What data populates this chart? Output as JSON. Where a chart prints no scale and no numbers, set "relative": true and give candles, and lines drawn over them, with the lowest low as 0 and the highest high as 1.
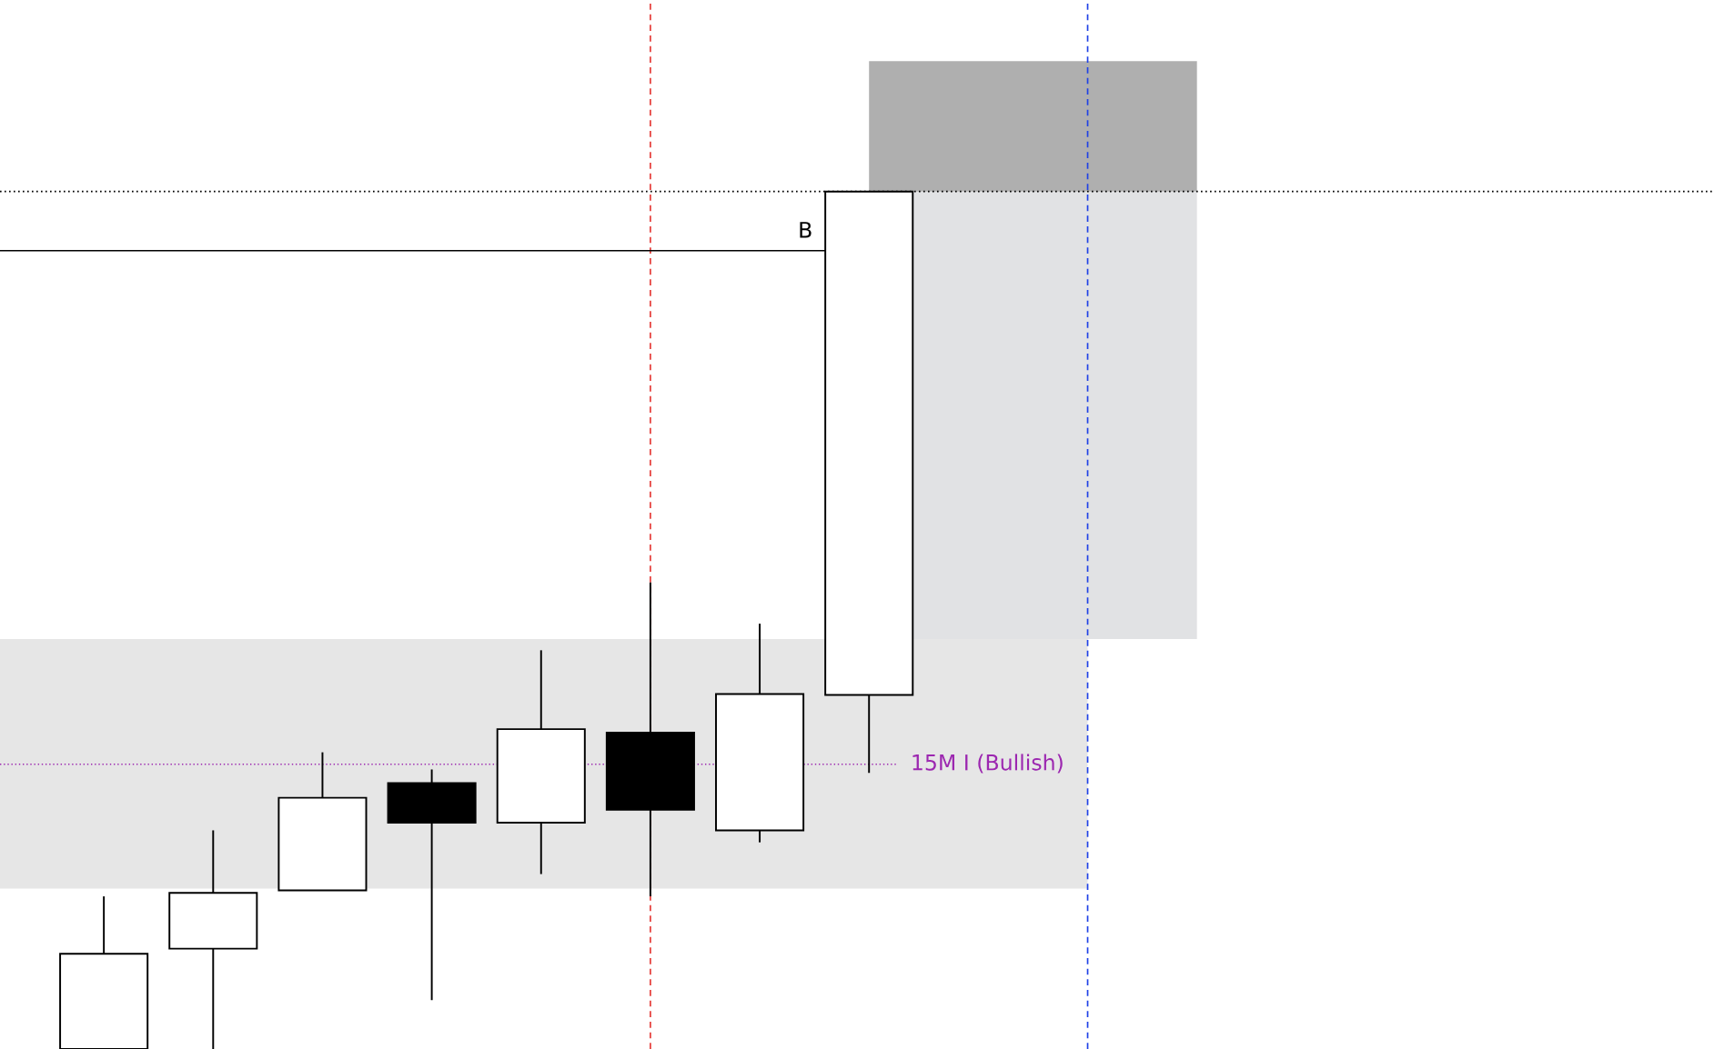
{
  "chart_data": {
    "type": "candlestick",
    "relative": true,
    "categories": [
      null,
      null,
      null,
      null,
      null,
      null,
      null,
      null
    ],
    "ohlc": [
      [
        0,
        0.178,
        0,
        0.111
      ],
      [
        0.117,
        0.255,
        0,
        0.182
      ],
      [
        0.185,
        0.346,
        0.185,
        0.293
      ],
      [
        0.31,
        0.326,
        0.057,
        0.264
      ],
      [
        0.264,
        0.465,
        0.204,
        0.373
      ],
      [
        0.369,
        0.544,
        0.178,
        0.279
      ],
      [
        0.255,
        0.496,
        0.241,
        0.414
      ],
      [
        0.413,
        1,
        0.322,
        1
      ]
    ],
    "ref_lines": [
      {
        "axis": "y",
        "value": 1,
        "color": "#000000",
        "line_style": "dotted"
      },
      {
        "axis": "y",
        "value": 0.931,
        "label": "B",
        "color": "#000000",
        "line_style": "solid"
      },
      {
        "axis": "y",
        "value": 0.332,
        "label": "15M I (Bullish)",
        "color": "#9c27b0",
        "line_style": "dotted"
      }
    ],
    "bands": [
      {
        "axis": "y",
        "from": 0.187,
        "to": 0.478,
        "color": "#e6e6e6"
      }
    ],
    "legend": false
  }
}
